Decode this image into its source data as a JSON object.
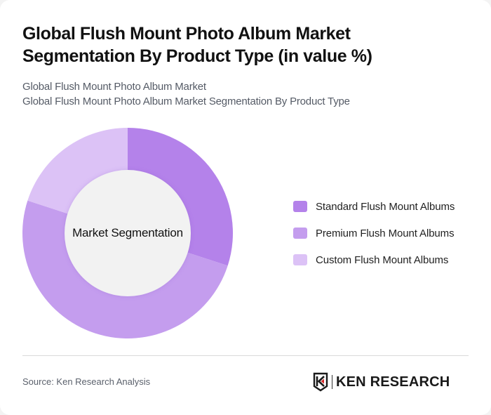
{
  "header": {
    "title": "Global Flush Mount Photo Album Market Segmentation By Product Type (in value %)",
    "subtitle_line1": "Global Flush Mount Photo Album Market",
    "subtitle_line2": "Global Flush Mount Photo Album Market Segmentation By Product Type"
  },
  "chart": {
    "center_label": "Market Segmentation"
  },
  "legend": {
    "items": [
      {
        "label": "Standard Flush Mount Albums",
        "color": "#B482EA"
      },
      {
        "label": "Premium Flush Mount Albums",
        "color": "#C49DEE"
      },
      {
        "label": "Custom Flush Mount Albums",
        "color": "#DCC2F6"
      }
    ]
  },
  "footer": {
    "source": "Source: Ken Research Analysis",
    "logo_text": "KEN RESEARCH",
    "logo_mark": "K"
  },
  "chart_data": {
    "type": "pie",
    "subtype": "donut",
    "title": "Global Flush Mount Photo Album Market Segmentation By Product Type (in value %)",
    "subtitle": "Global Flush Mount Photo Album Market / Global Flush Mount Photo Album Market Segmentation By Product Type",
    "center_text": "Market Segmentation",
    "categories": [
      "Standard Flush Mount Albums",
      "Premium Flush Mount Albums",
      "Custom Flush Mount Albums"
    ],
    "values": [
      30,
      50,
      20
    ],
    "colors": [
      "#B482EA",
      "#C49DEE",
      "#DCC2F6"
    ],
    "unit": "%",
    "start_angle": "12 o'clock, clockwise",
    "legend_position": "right",
    "source": "Source: Ken Research Analysis"
  }
}
